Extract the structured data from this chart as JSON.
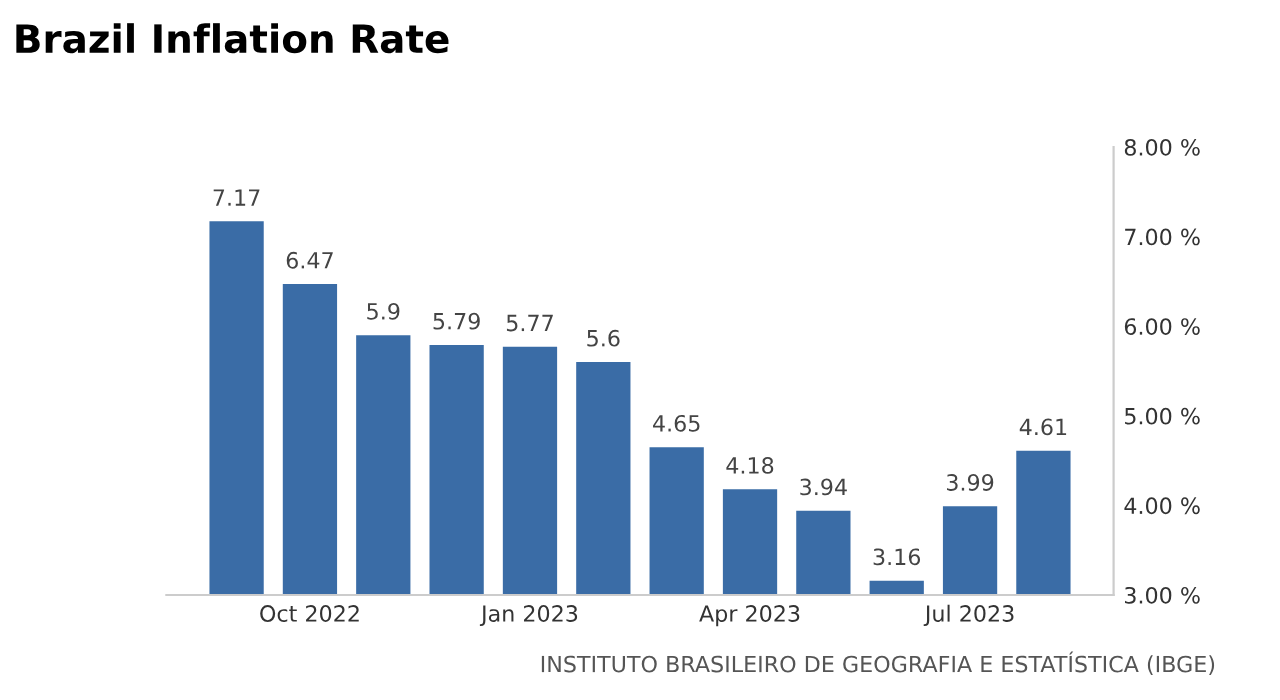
{
  "chart_data": {
    "type": "bar",
    "title": "Brazil Inflation Rate",
    "categories": [
      null,
      "Oct 2022",
      null,
      null,
      "Jan 2023",
      null,
      null,
      "Apr 2023",
      null,
      null,
      "Jul 2023",
      null
    ],
    "values": [
      7.17,
      6.47,
      5.9,
      5.79,
      5.77,
      5.6,
      4.65,
      4.18,
      3.94,
      3.16,
      3.99,
      4.61
    ],
    "value_labels": [
      "7.17",
      "6.47",
      "5.9",
      "5.79",
      "5.77",
      "5.6",
      "4.65",
      "4.18",
      "3.94",
      "3.16",
      "3.99",
      "4.61"
    ],
    "color": "#3a6ca6",
    "ylim": [
      3,
      8
    ],
    "yticks": [
      {
        "value": 3,
        "label": "3.00 %"
      },
      {
        "value": 4,
        "label": "4.00 %"
      },
      {
        "value": 5,
        "label": "5.00 %"
      },
      {
        "value": 6,
        "label": "6.00 %"
      },
      {
        "value": 7,
        "label": "7.00 %"
      },
      {
        "value": 8,
        "label": "8.00 %"
      }
    ],
    "annotations": [
      "INSTITUTO BRASILEIRO DE GEOGRAFIA E ESTATÍSTICA (IBGE)"
    ]
  }
}
